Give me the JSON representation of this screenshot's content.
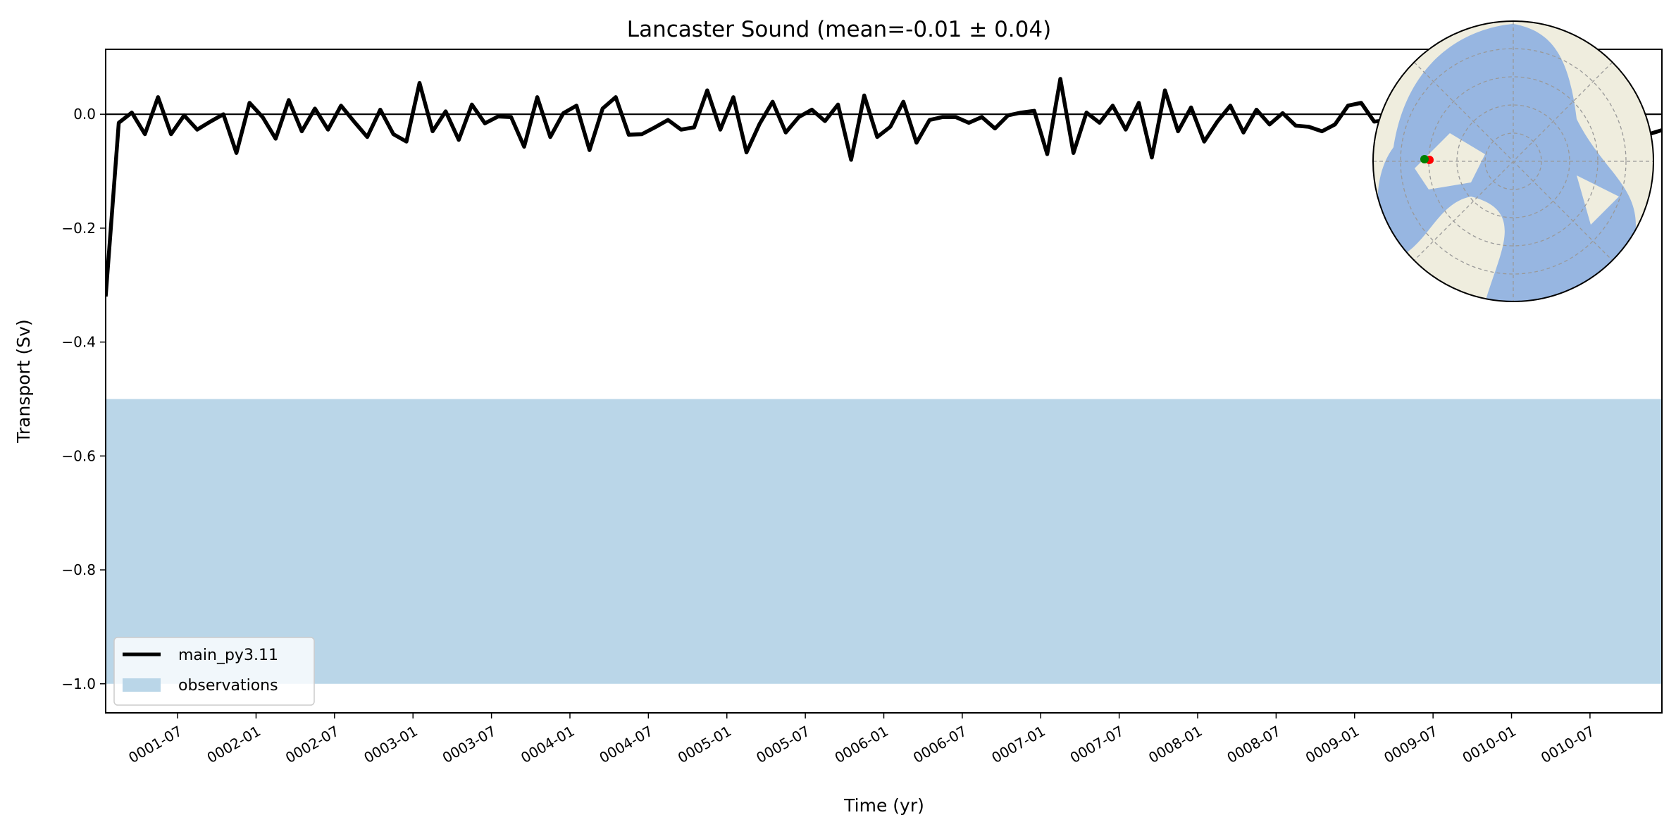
{
  "chart_data": {
    "type": "line",
    "title": "Lancaster Sound (mean=-0.01 ± 0.04)",
    "xlabel": "Time (yr)",
    "ylabel": "Transport (Sv)",
    "ylim": [
      -1.051,
      0.114
    ],
    "xlim_months": [
      0.5,
      119.5
    ],
    "yticks": [
      0.0,
      -0.2,
      -0.4,
      -0.6,
      -0.8,
      -1.0
    ],
    "ytick_labels": [
      "0.0",
      "−0.2",
      "−0.4",
      "−0.6",
      "−0.8",
      "−1.0"
    ],
    "xtick_months": [
      6,
      12,
      18,
      24,
      30,
      36,
      42,
      48,
      54,
      60,
      66,
      72,
      78,
      84,
      90,
      96,
      102,
      108,
      114
    ],
    "xtick_labels": [
      "0001-07",
      "0002-01",
      "0002-07",
      "0003-01",
      "0003-07",
      "0004-01",
      "0004-07",
      "0005-01",
      "0005-07",
      "0006-01",
      "0006-07",
      "0007-01",
      "0007-07",
      "0008-01",
      "0008-07",
      "0009-01",
      "0009-07",
      "0010-01",
      "0010-07"
    ],
    "zero_line": 0.0,
    "observations_range": [
      -1.0,
      -0.5
    ],
    "series": [
      {
        "name": "main_py3.11",
        "color": "#000000",
        "values": [
          -0.32,
          -0.015,
          0.003,
          -0.035,
          0.03,
          -0.035,
          -0.002,
          -0.027,
          -0.013,
          0.0,
          -0.068,
          0.02,
          -0.005,
          -0.043,
          0.025,
          -0.03,
          0.01,
          -0.027,
          0.015,
          -0.013,
          -0.04,
          0.008,
          -0.035,
          -0.048,
          0.055,
          -0.03,
          0.005,
          -0.045,
          0.017,
          -0.016,
          -0.004,
          -0.005,
          -0.057,
          0.03,
          -0.04,
          0.002,
          0.015,
          -0.063,
          0.01,
          0.03,
          -0.036,
          -0.035,
          -0.023,
          -0.01,
          -0.027,
          -0.023,
          0.042,
          -0.027,
          0.03,
          -0.067,
          -0.017,
          0.022,
          -0.032,
          -0.005,
          0.008,
          -0.012,
          0.017,
          -0.08,
          0.033,
          -0.04,
          -0.022,
          0.022,
          -0.05,
          -0.01,
          -0.005,
          -0.005,
          -0.015,
          -0.005,
          -0.025,
          -0.002,
          0.003,
          0.006,
          -0.07,
          0.062,
          -0.068,
          0.003,
          -0.015,
          0.015,
          -0.027,
          0.02,
          -0.076,
          0.042,
          -0.03,
          0.012,
          -0.048,
          -0.013,
          0.015,
          -0.032,
          0.008,
          -0.018,
          0.002,
          -0.02,
          -0.022,
          -0.03,
          -0.018,
          0.015,
          0.02,
          -0.013,
          -0.01,
          0.01,
          -0.02,
          0.005,
          -0.03,
          -0.01,
          0.012,
          -0.025,
          -0.005,
          0.008,
          -0.015,
          -0.02,
          -0.01,
          0.0,
          -0.025,
          -0.015,
          -0.03,
          -0.02,
          -0.018,
          -0.012,
          -0.035,
          -0.028
        ]
      }
    ],
    "legend": {
      "placement": "lower-left",
      "entries": [
        {
          "label": "main_py3.11",
          "color": "#000000",
          "kind": "line"
        },
        {
          "label": "observations",
          "color": "#bad6e8",
          "kind": "patch"
        }
      ]
    },
    "inset_map": {
      "projection": "north-polar",
      "land_color": "#efedde",
      "ocean_color": "#97b6e1",
      "markers": [
        {
          "color": "#008000"
        },
        {
          "color": "#ff0000"
        }
      ]
    }
  }
}
